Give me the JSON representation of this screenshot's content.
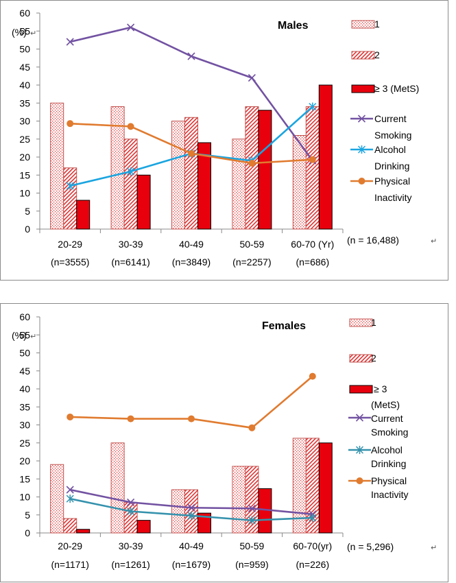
{
  "colors": {
    "smoking": "#7252a2",
    "alcohol": "#1aa5e0",
    "alcohol_females": "#3592ad",
    "inactivity": "#e07b2f",
    "bar_dark": "#e8000d",
    "bar_outline": "#c0504d",
    "pattern_red": "#e03030",
    "axis": "#888888",
    "grid": "#888888"
  },
  "chart_data": [
    {
      "type": "bar",
      "title": "Males",
      "ylabel": "(%)",
      "ylim": [
        0,
        60
      ],
      "yticks": [
        "0",
        "5",
        "10",
        "15",
        "20",
        "25",
        "30",
        "35",
        "40",
        "45",
        "50",
        "55",
        "60"
      ],
      "categories": [
        "20-29",
        "30-39",
        "40-49",
        "50-59",
        "60-70 (Yr)"
      ],
      "category_n": [
        "(n=3555)",
        "(n=6141)",
        "(n=3849)",
        "(n=2257)",
        "(n=686)"
      ],
      "sample_note": "(n = 16,488)",
      "series": [
        {
          "name": "1",
          "kind": "bar",
          "style": "dots",
          "values": [
            35,
            34,
            30,
            25,
            26
          ]
        },
        {
          "name": "2",
          "kind": "bar",
          "style": "hatch",
          "values": [
            17,
            25,
            31,
            34,
            34
          ]
        },
        {
          "name": "≥ 3 (MetS)",
          "kind": "bar",
          "style": "solid",
          "values": [
            8,
            15,
            24,
            33,
            40
          ]
        },
        {
          "name": "Current Smoking",
          "kind": "line",
          "marker": "x",
          "color_key": "smoking",
          "values": [
            52,
            56,
            48,
            42,
            19
          ]
        },
        {
          "name": "Alcohol Drinking",
          "kind": "line",
          "marker": "star",
          "color_key": "alcohol",
          "values": [
            12,
            16,
            21,
            19,
            34
          ]
        },
        {
          "name": "Physical Inactivity",
          "kind": "line",
          "marker": "circle",
          "color_key": "inactivity",
          "values": [
            29.3,
            28.5,
            21,
            18.3,
            19.3
          ]
        }
      ],
      "legend_lines": [
        [
          "1"
        ],
        [
          "2"
        ],
        [
          "≥ 3  (MetS)"
        ],
        [
          "Current",
          "Smoking"
        ],
        [
          "Alcohol",
          "Drinking"
        ],
        [
          "Physical",
          "Inactivity"
        ]
      ]
    },
    {
      "type": "bar",
      "title": "Females",
      "ylabel": "(%)",
      "ylim": [
        0,
        60
      ],
      "yticks": [
        "0",
        "5",
        "10",
        "15",
        "20",
        "25",
        "30",
        "35",
        "40",
        "45",
        "50",
        "55",
        "60"
      ],
      "categories": [
        "20-29",
        "30-39",
        "40-49",
        "50-59",
        "60-70(yr)"
      ],
      "category_n": [
        "(n=1171)",
        "(n=1261)",
        "(n=1679)",
        "(n=959)",
        "(n=226)"
      ],
      "sample_note": "(n  =  5,296)",
      "series": [
        {
          "name": "1",
          "kind": "bar",
          "style": "dots",
          "values": [
            19,
            25,
            12,
            18.5,
            26.3
          ]
        },
        {
          "name": "2",
          "kind": "bar",
          "style": "hatch",
          "values": [
            4,
            8.5,
            12,
            18.5,
            26.3
          ]
        },
        {
          "name": "≥ 3 (MetS)",
          "kind": "bar",
          "style": "solid",
          "values": [
            1,
            3.5,
            5.5,
            12.3,
            25
          ]
        },
        {
          "name": "Current Smoking",
          "kind": "line",
          "marker": "x",
          "color_key": "smoking",
          "values": [
            12,
            8.5,
            7,
            6.8,
            5.2
          ]
        },
        {
          "name": "Alcohol Drinking",
          "kind": "line",
          "marker": "star",
          "color_key": "alcohol_females",
          "values": [
            9.5,
            6,
            4.8,
            3.5,
            4.2
          ]
        },
        {
          "name": "Physical Inactivity",
          "kind": "line",
          "marker": "circle",
          "color_key": "inactivity",
          "values": [
            32.2,
            31.7,
            31.7,
            29.2,
            43.5
          ]
        }
      ],
      "legend_lines": [
        [
          "1"
        ],
        [
          "2"
        ],
        [
          "≥ 3"
        ],
        [
          "(MetS)",
          "Current",
          "Smoking"
        ],
        [
          "Alcohol",
          "Drinking"
        ],
        [
          "Physical",
          "Inactivity"
        ]
      ]
    }
  ]
}
